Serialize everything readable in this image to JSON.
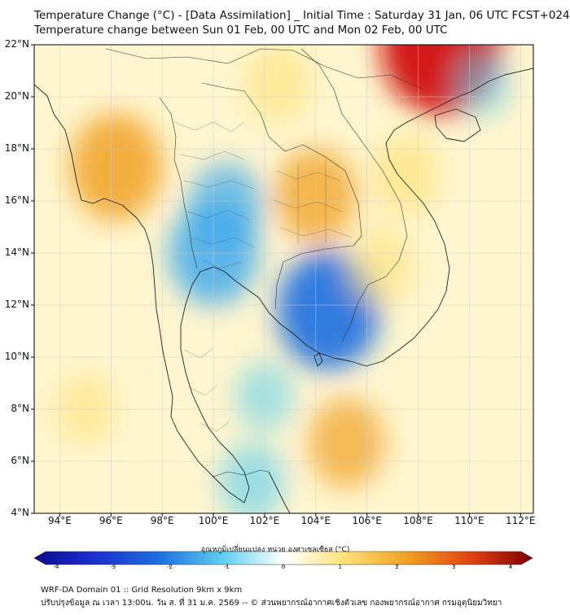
{
  "header": {
    "title_line1": "Temperature Change (°C) - [Data Assimilation] _ Initial Time : Saturday 31 Jan, 06 UTC FCST+024",
    "title_line2": "Temperature change between Sun 01 Feb, 00 UTC and Mon 02 Feb, 00 UTC"
  },
  "map": {
    "lat_labels": [
      "22°N",
      "20°N",
      "18°N",
      "16°N",
      "14°N",
      "12°N",
      "10°N",
      "8°N",
      "6°N",
      "4°N"
    ],
    "lon_labels": [
      "94°E",
      "96°E",
      "98°E",
      "100°E",
      "102°E",
      "104°E",
      "106°E",
      "108°E",
      "110°E",
      "112°E"
    ],
    "lat_range": [
      4,
      22
    ],
    "lon_range": [
      93,
      112.5
    ],
    "anomalies": [
      {
        "name": "bangkok-cooling",
        "lon": 100.0,
        "lat": 14.0,
        "value": -1.8
      },
      {
        "name": "central-thailand-cooling",
        "lon": 100.5,
        "lat": 15.8,
        "value": -1.2
      },
      {
        "name": "cambodia-cooling",
        "lon": 104.5,
        "lat": 11.8,
        "value": -2.3
      },
      {
        "name": "gulf-thailand-cooling",
        "lon": 102.0,
        "lat": 8.5,
        "value": -0.6
      },
      {
        "name": "malaysia-cooling",
        "lon": 101.5,
        "lat": 5.2,
        "value": -0.9
      },
      {
        "name": "isan-warming",
        "lon": 104.0,
        "lat": 16.2,
        "value": 1.5
      },
      {
        "name": "myanmar-warming",
        "lon": 96.2,
        "lat": 17.3,
        "value": 1.9
      },
      {
        "name": "north-laos-warming",
        "lon": 102.5,
        "lat": 20.5,
        "value": 0.9
      },
      {
        "name": "china-warming",
        "lon": 108.9,
        "lat": 22.0,
        "value": 3.0
      },
      {
        "name": "vietnam-coast-warming",
        "lon": 107.5,
        "lat": 17.0,
        "value": 1.0
      },
      {
        "name": "south-vietnam-warming",
        "lon": 106.5,
        "lat": 13.5,
        "value": 0.9
      },
      {
        "name": "south-sea-warming",
        "lon": 105.2,
        "lat": 6.7,
        "value": 1.3
      },
      {
        "name": "andaman-warming",
        "lon": 95.0,
        "lat": 8.0,
        "value": 0.7
      },
      {
        "name": "east-sea-cooling",
        "lon": 110.5,
        "lat": 20.5,
        "value": -0.5
      }
    ]
  },
  "colorbar": {
    "title": "อุณหภูมิเปลี่ยนแปลง หน่วย องศาเซลเซียส (°C)",
    "ticks": [
      "-4",
      "-3",
      "-2",
      "-1",
      "0",
      "1",
      "2",
      "3",
      "4"
    ],
    "min": -4,
    "max": 4
  },
  "footer": {
    "line1": "WRF-DA Domain 01 :: Grid Resolution 9km x 9km",
    "line2": "ปรับปรุงข้อมูล ณ เวลา 13:00น. วัน ส. ที่ 31 ม.ค. 2569 -- © ส่วนพยากรณ์อากาศเชิงตัวเลข กองพยากรณ์อากาศ กรมอุตุนิยมวิทยา"
  },
  "colors": {
    "cold_deep": "#0b0b8f",
    "cold": "#1c6fe0",
    "cool": "#5fd0f0",
    "neutral": "#ffffff",
    "warm": "#ffe27a",
    "hot": "#f0a020",
    "hot_deep": "#d01010",
    "coast": "#222222",
    "grid": "#cccccc"
  }
}
